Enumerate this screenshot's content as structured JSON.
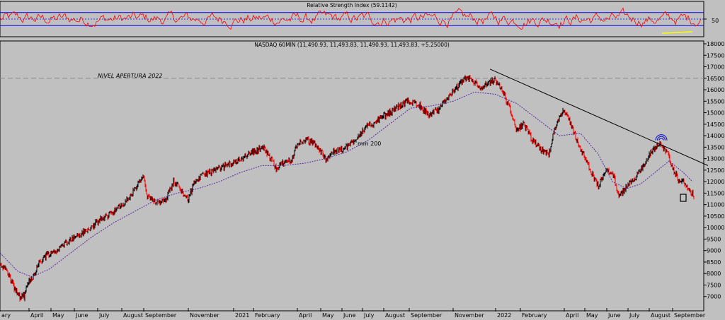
{
  "chart_data": [
    {
      "type": "line",
      "title": "Relative Strength Index (59.1142)",
      "ylabel_ticks": [
        "50"
      ],
      "upper_band": 70,
      "lower_band": 30,
      "mid_line": 50,
      "current_value": 59.1142,
      "colors": {
        "series": "#ff0000",
        "bands": "#0000ff",
        "highlight": "#ffff00"
      }
    },
    {
      "type": "candlestick",
      "title": "NASDAQ 60MIN (11,490.93, 11,493.83, 11,490.93, 11,493.83, +5.25000)",
      "ylim": [
        6500,
        18000
      ],
      "y_ticks": [
        7000,
        7500,
        8000,
        8500,
        9000,
        9500,
        10000,
        10500,
        11000,
        11500,
        12000,
        12500,
        13000,
        13500,
        14000,
        14500,
        15000,
        15500,
        16000,
        16500,
        17000,
        17500,
        18000
      ],
      "x_ticks": [
        "ary",
        "April",
        "May",
        "June",
        "July",
        "August",
        "September",
        "November",
        "2021",
        "February",
        "April",
        "May",
        "June",
        "July",
        "August",
        "September",
        "November",
        "2022",
        "February",
        "April",
        "May",
        "June",
        "July",
        "August",
        "September"
      ],
      "annotations": {
        "reference_label": "NIVEL APERTURA 2022",
        "reference_level": 16500,
        "ma_label": "mm 200"
      },
      "price_path": [
        {
          "x": 0,
          "y": 8450
        },
        {
          "x": 10,
          "y": 8100
        },
        {
          "x": 20,
          "y": 7400
        },
        {
          "x": 28,
          "y": 6950
        },
        {
          "x": 34,
          "y": 7000
        },
        {
          "x": 40,
          "y": 7600
        },
        {
          "x": 46,
          "y": 7850
        },
        {
          "x": 55,
          "y": 8450
        },
        {
          "x": 65,
          "y": 8800
        },
        {
          "x": 80,
          "y": 9000
        },
        {
          "x": 95,
          "y": 9400
        },
        {
          "x": 110,
          "y": 9650
        },
        {
          "x": 125,
          "y": 9900
        },
        {
          "x": 140,
          "y": 10300
        },
        {
          "x": 155,
          "y": 10600
        },
        {
          "x": 170,
          "y": 10900
        },
        {
          "x": 185,
          "y": 11400
        },
        {
          "x": 195,
          "y": 11900
        },
        {
          "x": 203,
          "y": 12200
        },
        {
          "x": 208,
          "y": 11300
        },
        {
          "x": 215,
          "y": 11200
        },
        {
          "x": 225,
          "y": 11100
        },
        {
          "x": 235,
          "y": 11300
        },
        {
          "x": 245,
          "y": 12000
        },
        {
          "x": 255,
          "y": 11700
        },
        {
          "x": 265,
          "y": 11200
        },
        {
          "x": 275,
          "y": 12000
        },
        {
          "x": 290,
          "y": 12350
        },
        {
          "x": 305,
          "y": 12500
        },
        {
          "x": 320,
          "y": 12700
        },
        {
          "x": 335,
          "y": 12900
        },
        {
          "x": 350,
          "y": 13200
        },
        {
          "x": 360,
          "y": 13350
        },
        {
          "x": 372,
          "y": 13500
        },
        {
          "x": 380,
          "y": 13100
        },
        {
          "x": 390,
          "y": 12600
        },
        {
          "x": 400,
          "y": 12800
        },
        {
          "x": 412,
          "y": 13000
        },
        {
          "x": 422,
          "y": 13700
        },
        {
          "x": 432,
          "y": 13800
        },
        {
          "x": 445,
          "y": 13650
        },
        {
          "x": 460,
          "y": 13000
        },
        {
          "x": 470,
          "y": 13300
        },
        {
          "x": 485,
          "y": 13400
        },
        {
          "x": 500,
          "y": 13800
        },
        {
          "x": 515,
          "y": 14300
        },
        {
          "x": 530,
          "y": 14600
        },
        {
          "x": 545,
          "y": 14900
        },
        {
          "x": 560,
          "y": 15200
        },
        {
          "x": 575,
          "y": 15500
        },
        {
          "x": 590,
          "y": 15400
        },
        {
          "x": 605,
          "y": 14900
        },
        {
          "x": 620,
          "y": 15100
        },
        {
          "x": 630,
          "y": 15600
        },
        {
          "x": 645,
          "y": 16100
        },
        {
          "x": 658,
          "y": 16500
        },
        {
          "x": 668,
          "y": 16400
        },
        {
          "x": 680,
          "y": 16000
        },
        {
          "x": 690,
          "y": 16300
        },
        {
          "x": 700,
          "y": 16400
        },
        {
          "x": 712,
          "y": 15800
        },
        {
          "x": 722,
          "y": 15000
        },
        {
          "x": 730,
          "y": 14200
        },
        {
          "x": 740,
          "y": 14500
        },
        {
          "x": 752,
          "y": 13800
        },
        {
          "x": 763,
          "y": 13400
        },
        {
          "x": 775,
          "y": 13200
        },
        {
          "x": 785,
          "y": 14500
        },
        {
          "x": 795,
          "y": 15100
        },
        {
          "x": 805,
          "y": 14600
        },
        {
          "x": 815,
          "y": 13800
        },
        {
          "x": 825,
          "y": 13100
        },
        {
          "x": 835,
          "y": 12400
        },
        {
          "x": 845,
          "y": 11800
        },
        {
          "x": 855,
          "y": 12500
        },
        {
          "x": 865,
          "y": 12400
        },
        {
          "x": 875,
          "y": 11300
        },
        {
          "x": 885,
          "y": 11800
        },
        {
          "x": 897,
          "y": 12200
        },
        {
          "x": 908,
          "y": 12600
        },
        {
          "x": 920,
          "y": 13300
        },
        {
          "x": 932,
          "y": 13650
        },
        {
          "x": 942,
          "y": 13300
        },
        {
          "x": 950,
          "y": 12600
        },
        {
          "x": 958,
          "y": 12100
        },
        {
          "x": 966,
          "y": 12000
        },
        {
          "x": 972,
          "y": 11600
        },
        {
          "x": 980,
          "y": 11400
        }
      ],
      "ma_path": [
        {
          "x": 0,
          "y": 8900
        },
        {
          "x": 25,
          "y": 8100
        },
        {
          "x": 45,
          "y": 7850
        },
        {
          "x": 70,
          "y": 8200
        },
        {
          "x": 100,
          "y": 8900
        },
        {
          "x": 130,
          "y": 9600
        },
        {
          "x": 160,
          "y": 10200
        },
        {
          "x": 190,
          "y": 10700
        },
        {
          "x": 220,
          "y": 11200
        },
        {
          "x": 250,
          "y": 11500
        },
        {
          "x": 280,
          "y": 11700
        },
        {
          "x": 310,
          "y": 12000
        },
        {
          "x": 340,
          "y": 12400
        },
        {
          "x": 370,
          "y": 12700
        },
        {
          "x": 400,
          "y": 12700
        },
        {
          "x": 430,
          "y": 12800
        },
        {
          "x": 460,
          "y": 13000
        },
        {
          "x": 490,
          "y": 13300
        },
        {
          "x": 520,
          "y": 13800
        },
        {
          "x": 550,
          "y": 14500
        },
        {
          "x": 580,
          "y": 15200
        },
        {
          "x": 610,
          "y": 15300
        },
        {
          "x": 640,
          "y": 15500
        },
        {
          "x": 670,
          "y": 15900
        },
        {
          "x": 700,
          "y": 15800
        },
        {
          "x": 730,
          "y": 15400
        },
        {
          "x": 760,
          "y": 14700
        },
        {
          "x": 790,
          "y": 14000
        },
        {
          "x": 820,
          "y": 14100
        },
        {
          "x": 845,
          "y": 13200
        },
        {
          "x": 865,
          "y": 12000
        },
        {
          "x": 885,
          "y": 11700
        },
        {
          "x": 905,
          "y": 11900
        },
        {
          "x": 925,
          "y": 12400
        },
        {
          "x": 945,
          "y": 12900
        },
        {
          "x": 965,
          "y": 12400
        },
        {
          "x": 978,
          "y": 12000
        }
      ],
      "trend_line": [
        {
          "x": 692,
          "y": 16900
        },
        {
          "x": 1000,
          "y": 12700
        }
      ],
      "colors": {
        "bull": "#000000",
        "bear": "#ff0000",
        "ma": "#5a2aa0",
        "ref_line": "#8a8a8a",
        "marker": "#0000cc"
      }
    }
  ]
}
